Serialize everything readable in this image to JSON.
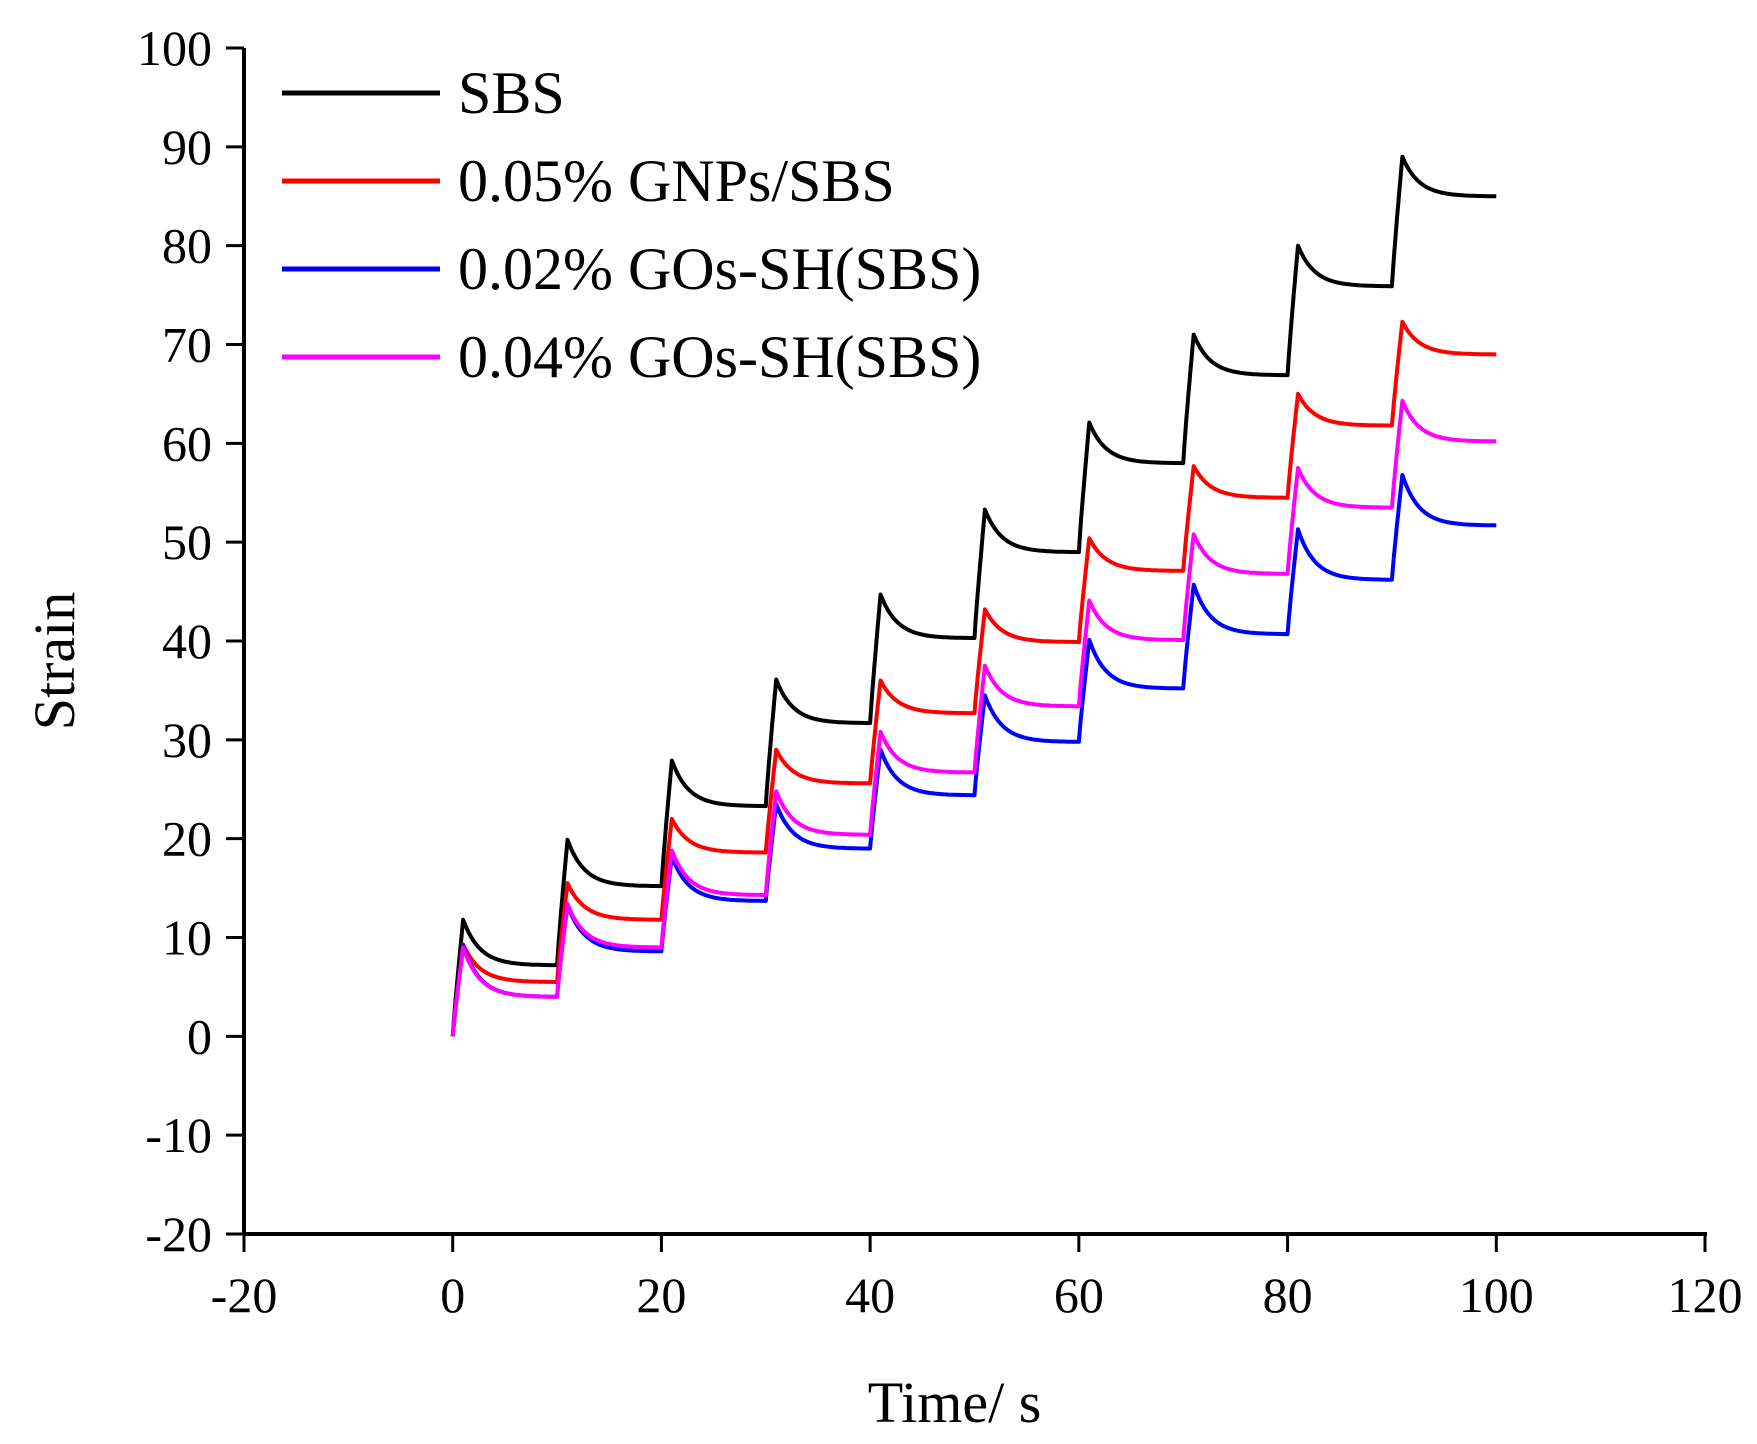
{
  "chart_data": {
    "type": "line",
    "title": "",
    "xlabel": "Time/ s",
    "ylabel": "Strain",
    "xlim": [
      -20,
      120
    ],
    "ylim": [
      -20,
      100
    ],
    "xticks": [
      -20,
      0,
      20,
      40,
      60,
      80,
      100,
      120
    ],
    "yticks": [
      -20,
      -10,
      0,
      10,
      20,
      30,
      40,
      50,
      60,
      70,
      80,
      90,
      100
    ],
    "grid": false,
    "legend_position": "top-left",
    "creep_recovery": {
      "cycle_period_s": 10,
      "load_duration_s": 1,
      "cycles": 10
    },
    "series": [
      {
        "name": "SBS",
        "color": "#000000",
        "peaks": [
          11.8,
          19.9,
          27.9,
          36.1,
          44.7,
          53.3,
          62.1,
          71.0,
          80.0,
          89.0
        ],
        "ends": [
          7.2,
          15.2,
          23.3,
          31.7,
          40.3,
          49.0,
          58.0,
          66.9,
          75.9,
          85.0
        ]
      },
      {
        "name": "0.05% GNPs/SBS",
        "color": "#ff0000",
        "peaks": [
          9.3,
          15.5,
          22.0,
          29.0,
          36.0,
          43.2,
          50.4,
          57.7,
          65.0,
          72.3
        ],
        "ends": [
          5.5,
          11.8,
          18.6,
          25.6,
          32.7,
          39.9,
          47.1,
          54.5,
          61.8,
          69.0
        ]
      },
      {
        "name": "0.02% GOs-SH(SBS)",
        "color": "#0000ff",
        "peaks": [
          9.2,
          13.3,
          18.2,
          23.5,
          29.0,
          34.5,
          40.1,
          45.7,
          51.3,
          56.8
        ],
        "ends": [
          4.0,
          8.6,
          13.7,
          19.0,
          24.4,
          29.8,
          35.2,
          40.7,
          46.2,
          51.7
        ]
      },
      {
        "name": "0.04% GOs-SH(SBS)",
        "color": "#ff00ff",
        "peaks": [
          9.0,
          13.4,
          18.8,
          24.8,
          30.8,
          37.5,
          44.1,
          50.8,
          57.5,
          64.3
        ],
        "ends": [
          4.0,
          9.0,
          14.3,
          20.4,
          26.7,
          33.4,
          40.1,
          46.8,
          53.5,
          60.2
        ]
      }
    ]
  }
}
